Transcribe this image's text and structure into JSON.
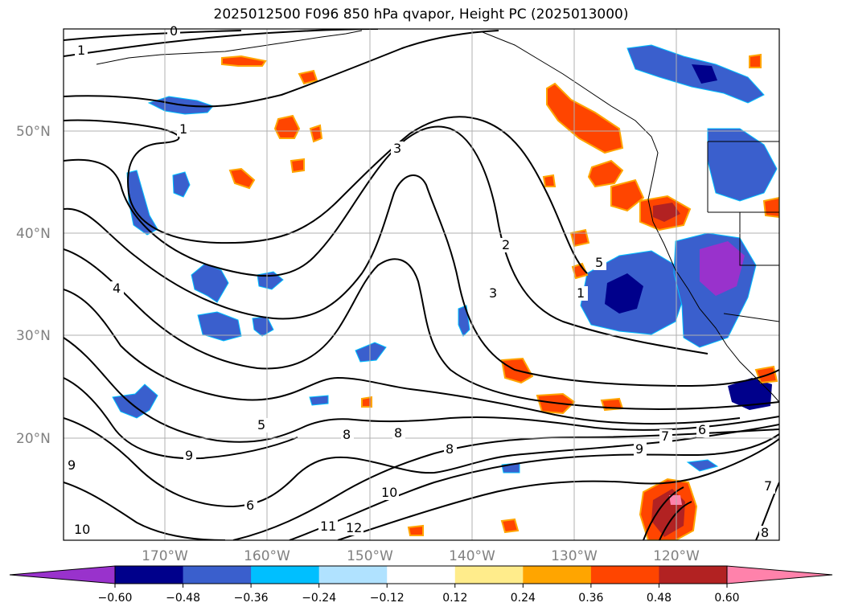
{
  "title": "2025012500 F096 850 hPa qvapor, Height PC (2025013000)",
  "lat_labels": [
    "50°N",
    "40°N",
    "30°N",
    "20°N"
  ],
  "lon_labels": [
    "170°W",
    "160°W",
    "150°W",
    "140°W",
    "130°W",
    "120°W"
  ],
  "contour_labels": [
    "0",
    "1",
    "1",
    "3",
    "2",
    "3",
    "1",
    "4",
    "5",
    "5",
    "8",
    "8",
    "8",
    "9",
    "9",
    "7",
    "6",
    "10",
    "11",
    "12",
    "6",
    "7",
    "9",
    "10",
    "8"
  ],
  "colorbar": {
    "ticks": [
      "−0.60",
      "−0.48",
      "−0.36",
      "−0.24",
      "−0.12",
      "0.12",
      "0.24",
      "0.36",
      "0.48",
      "0.60"
    ],
    "colors": [
      "#9932cc",
      "#00008b",
      "#3a5fcd",
      "#00bfff",
      "#b0e2ff",
      "#ffffff",
      "#ffec8b",
      "#ffa500",
      "#ff4500",
      "#b22222",
      "#ff82ab"
    ]
  }
}
